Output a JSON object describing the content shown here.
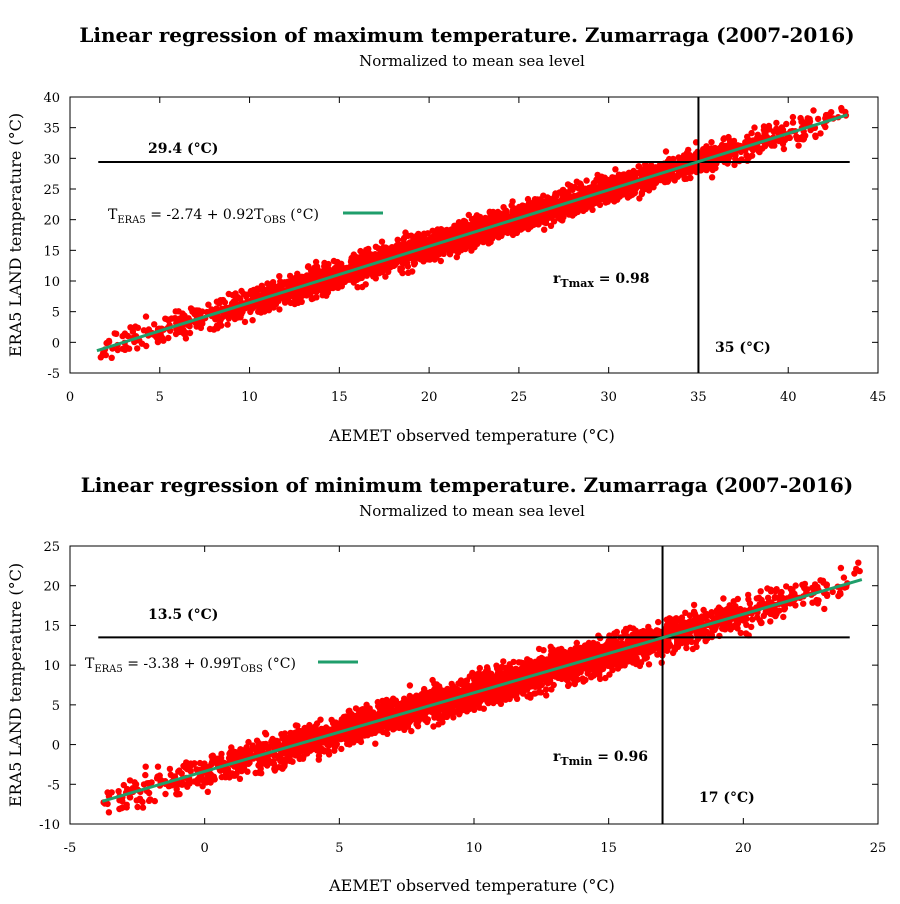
{
  "chart_data": [
    {
      "type": "scatter",
      "title": "Linear regression of maximum temperature. Zumarraga (2007-2016)",
      "subtitle": "Normalized to mean sea level",
      "xlabel": "AEMET observed temperature (°C)",
      "ylabel": "ERA5 LAND temperature (°C)",
      "xlim": [
        0,
        45
      ],
      "ylim": [
        -5,
        40
      ],
      "xticks": [
        "0",
        "5",
        "10",
        "15",
        "20",
        "25",
        "30",
        "35",
        "40",
        "45"
      ],
      "yticks": [
        "-5",
        "0",
        "5",
        "10",
        "15",
        "20",
        "25",
        "30",
        "35",
        "40"
      ],
      "regression": {
        "intercept": -2.74,
        "slope": 0.92,
        "x_range": [
          1.5,
          43.3
        ]
      },
      "equation": {
        "lhs": "T",
        "lhs_sub": "ERA5",
        "mid": " = -2.74 + 0.92T",
        "rhs_sub": "OBS",
        "unit": " (°C)"
      },
      "correlation": {
        "label": "r",
        "sub": "Tmax",
        "value": " = 0.98"
      },
      "hline": {
        "y": 29.4,
        "label": "29.4 (°C)"
      },
      "vline": {
        "x": 35,
        "label": "35 (°C)"
      },
      "scatter_summary": {
        "x_min": 1.5,
        "x_max": 43.3,
        "residual_spread": 1.6,
        "approx_points": 3200
      },
      "colors": {
        "points": "#ff0000",
        "regression": "#1f9e6b",
        "guides": "#000000"
      }
    },
    {
      "type": "scatter",
      "title": "Linear regression of minimum temperature. Zumarraga (2007-2016)",
      "subtitle": "Normalized to mean sea level",
      "xlabel": "AEMET observed temperature (°C)",
      "ylabel": "ERA5 LAND temperature (°C)",
      "xlim": [
        -5,
        25
      ],
      "ylim": [
        -10,
        25
      ],
      "xticks": [
        "-5",
        "0",
        "5",
        "10",
        "15",
        "20",
        "25"
      ],
      "yticks": [
        "-10",
        "-5",
        "0",
        "5",
        "10",
        "15",
        "20",
        "25"
      ],
      "regression": {
        "intercept": -3.38,
        "slope": 0.99,
        "x_range": [
          -3.8,
          24.4
        ]
      },
      "equation": {
        "lhs": "T",
        "lhs_sub": "ERA5",
        "mid": " = -3.38 + 0.99T",
        "rhs_sub": "OBS",
        "unit": " (°C)"
      },
      "correlation": {
        "label": "r",
        "sub": "Tmin",
        "value": " = 0.96"
      },
      "hline": {
        "y": 13.5,
        "label": "13.5 (°C)"
      },
      "vline": {
        "x": 17,
        "label": "17 (°C)"
      },
      "scatter_summary": {
        "x_min": -3.8,
        "x_max": 24.4,
        "residual_spread": 1.5,
        "approx_points": 3200
      },
      "colors": {
        "points": "#ff0000",
        "regression": "#1f9e6b",
        "guides": "#000000"
      }
    }
  ]
}
